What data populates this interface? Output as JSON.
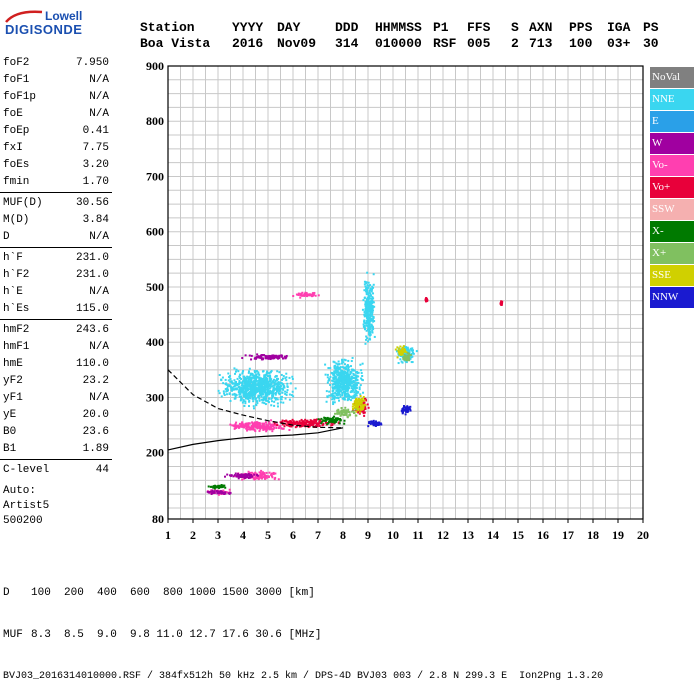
{
  "logo": {
    "line1": "Lowell",
    "line2": "DIGISONDE"
  },
  "header": {
    "labels": [
      "Station",
      "YYYY",
      "DAY",
      "DDD",
      "HHMMSS",
      "P1",
      "FFS",
      "S",
      "AXN",
      "PPS",
      "IGA",
      "PS"
    ],
    "values": [
      "Boa Vista",
      "2016",
      "Nov09",
      "314",
      "010000",
      "RSF",
      "005",
      "2",
      "713",
      "100",
      "03+",
      "30"
    ]
  },
  "params": {
    "group1": [
      {
        "name": "foF2",
        "value": "7.950"
      },
      {
        "name": "foF1",
        "value": "N/A"
      },
      {
        "name": "foF1p",
        "value": "N/A"
      },
      {
        "name": "foE",
        "value": "N/A"
      },
      {
        "name": "foEp",
        "value": "0.41"
      },
      {
        "name": "fxI",
        "value": "7.75"
      },
      {
        "name": "foEs",
        "value": "3.20"
      },
      {
        "name": "fmin",
        "value": "1.70"
      }
    ],
    "group2": [
      {
        "name": "MUF(D)",
        "value": "30.56"
      },
      {
        "name": "M(D)",
        "value": "3.84"
      },
      {
        "name": "D",
        "value": "N/A"
      }
    ],
    "group3": [
      {
        "name": "h`F",
        "value": "231.0"
      },
      {
        "name": "h`F2",
        "value": "231.0"
      },
      {
        "name": "h`E",
        "value": "N/A"
      },
      {
        "name": "h`Es",
        "value": "115.0"
      }
    ],
    "group4": [
      {
        "name": "hmF2",
        "value": "243.6"
      },
      {
        "name": "hmF1",
        "value": "N/A"
      },
      {
        "name": "hmE",
        "value": "110.0"
      },
      {
        "name": "yF2",
        "value": "23.2"
      },
      {
        "name": "yF1",
        "value": "N/A"
      },
      {
        "name": "yE",
        "value": "20.0"
      },
      {
        "name": "B0",
        "value": "23.6"
      },
      {
        "name": "B1",
        "value": "1.89"
      }
    ],
    "group5": [
      {
        "name": "C-level",
        "value": "44"
      }
    ]
  },
  "auto": {
    "line1": "Auto:",
    "line2": "Artist5",
    "line3": "500200"
  },
  "footer": {
    "d_label": "D",
    "d_values": "100  200  400  600  800 1000 1500 3000 [km]",
    "muf_label": "MUF",
    "muf_values": "8.3  8.5  9.0  9.8 11.0 12.7 17.6 30.6 [MHz]",
    "info": "BVJ03_2016314010000.RSF / 384fx512h 50 kHz 2.5 km / DPS-4D BVJ03 003 / 2.8 N 299.3 E  Ion2Png 1.3.20"
  },
  "legend": [
    {
      "label": "NoVal",
      "color": "#808080"
    },
    {
      "label": "NNE",
      "color": "#3ad6f0"
    },
    {
      "label": "E",
      "color": "#2aa0e8"
    },
    {
      "label": "W",
      "color": "#a000a0"
    },
    {
      "label": "Vo-",
      "color": "#ff3fb0"
    },
    {
      "label": "Vo+",
      "color": "#e8003a"
    },
    {
      "label": "SSW",
      "color": "#f5b0b0"
    },
    {
      "label": "X-",
      "color": "#007a00"
    },
    {
      "label": "X+",
      "color": "#80c060"
    },
    {
      "label": "SSE",
      "color": "#d0d000"
    },
    {
      "label": "NNW",
      "color": "#1a1ad0"
    }
  ],
  "chart_data": {
    "type": "scatter",
    "xlim": [
      1,
      20
    ],
    "ylim": [
      80,
      900
    ],
    "x_ticks": [
      1,
      2,
      3,
      4,
      5,
      6,
      7,
      8,
      9,
      10,
      11,
      12,
      13,
      14,
      15,
      16,
      17,
      18,
      19,
      20
    ],
    "y_ticks": [
      80,
      200,
      300,
      400,
      500,
      600,
      700,
      800,
      900
    ],
    "grid": true,
    "legend_position": "right",
    "series": [
      {
        "name": "NNE",
        "clusters": [
          [
            4.5,
            320,
            3.5,
            40
          ],
          [
            8,
            330,
            1.8,
            50
          ],
          [
            10.5,
            380,
            1,
            20
          ],
          [
            9,
            460,
            0.6,
            80
          ]
        ]
      },
      {
        "name": "Vo-",
        "clusters": [
          [
            4.5,
            250,
            3,
            12
          ],
          [
            4.5,
            160,
            2,
            10
          ],
          [
            3,
            130,
            1.2,
            6
          ],
          [
            6.5,
            488,
            1.3,
            6
          ]
        ]
      },
      {
        "name": "Vo+",
        "clusters": [
          [
            6.5,
            255,
            3,
            10
          ],
          [
            8.7,
            285,
            0.8,
            20
          ],
          [
            11.3,
            478,
            0.1,
            4
          ],
          [
            14.3,
            472,
            0.1,
            4
          ]
        ]
      },
      {
        "name": "W",
        "clusters": [
          [
            5,
            375,
            2.5,
            6
          ],
          [
            4,
            160,
            1.8,
            6
          ],
          [
            3,
            130,
            1.2,
            4
          ]
        ]
      },
      {
        "name": "NNW",
        "clusters": [
          [
            9.2,
            255,
            0.8,
            8
          ],
          [
            10.5,
            280,
            0.6,
            10
          ]
        ]
      },
      {
        "name": "SSE",
        "clusters": [
          [
            8.6,
            290,
            0.7,
            20
          ],
          [
            10.3,
            385,
            0.5,
            15
          ]
        ]
      },
      {
        "name": "X-",
        "clusters": [
          [
            7.5,
            260,
            1.5,
            8
          ],
          [
            3,
            140,
            1,
            4
          ]
        ]
      },
      {
        "name": "X+",
        "clusters": [
          [
            8,
            275,
            1.2,
            10
          ],
          [
            10.5,
            375,
            0.5,
            10
          ]
        ]
      }
    ],
    "lines": [
      {
        "name": "profile_lower",
        "points": [
          [
            1,
            205
          ],
          [
            2,
            215
          ],
          [
            3,
            222
          ],
          [
            4,
            227
          ],
          [
            5,
            230
          ],
          [
            6,
            232
          ],
          [
            7,
            236
          ],
          [
            8,
            245
          ]
        ]
      },
      {
        "name": "profile_upper",
        "points": [
          [
            1,
            350
          ],
          [
            2,
            305
          ],
          [
            3,
            280
          ],
          [
            4,
            268
          ],
          [
            5,
            258
          ],
          [
            6,
            250
          ],
          [
            7,
            246
          ],
          [
            8,
            245
          ]
        ]
      }
    ]
  }
}
